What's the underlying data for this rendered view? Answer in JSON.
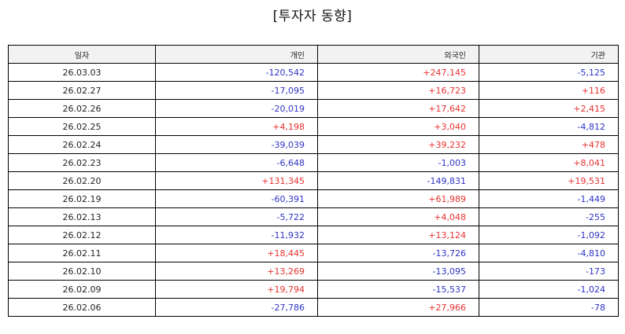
{
  "title": "[투자자 동향]",
  "colors": {
    "positive": "#e8312f",
    "negative": "#2d33c4",
    "header_bg": "#f2f2f2"
  },
  "table": {
    "headers": [
      "일자",
      "개인",
      "외국인",
      "기관"
    ],
    "rows": [
      [
        "26.03.03",
        "-120,542",
        "+247,145",
        "-5,125"
      ],
      [
        "26.02.27",
        "-17,095",
        "+16,723",
        "+116"
      ],
      [
        "26.02.26",
        "-20,019",
        "+17,642",
        "+2,415"
      ],
      [
        "26.02.25",
        "+4,198",
        "+3,040",
        "-4,812"
      ],
      [
        "26.02.24",
        "-39,039",
        "+39,232",
        "+478"
      ],
      [
        "26.02.23",
        "-6,648",
        "-1,003",
        "+8,041"
      ],
      [
        "26.02.20",
        "+131,345",
        "-149,831",
        "+19,531"
      ],
      [
        "26.02.19",
        "-60,391",
        "+61,989",
        "-1,449"
      ],
      [
        "26.02.13",
        "-5,722",
        "+4,048",
        "-255"
      ],
      [
        "26.02.12",
        "-11,932",
        "+13,124",
        "-1,092"
      ],
      [
        "26.02.11",
        "+18,445",
        "-13,726",
        "-4,810"
      ],
      [
        "26.02.10",
        "+13,269",
        "-13,095",
        "-173"
      ],
      [
        "26.02.09",
        "+19,794",
        "-15,537",
        "-1,024"
      ],
      [
        "26.02.06",
        "-27,786",
        "+27,966",
        "-78"
      ]
    ]
  }
}
